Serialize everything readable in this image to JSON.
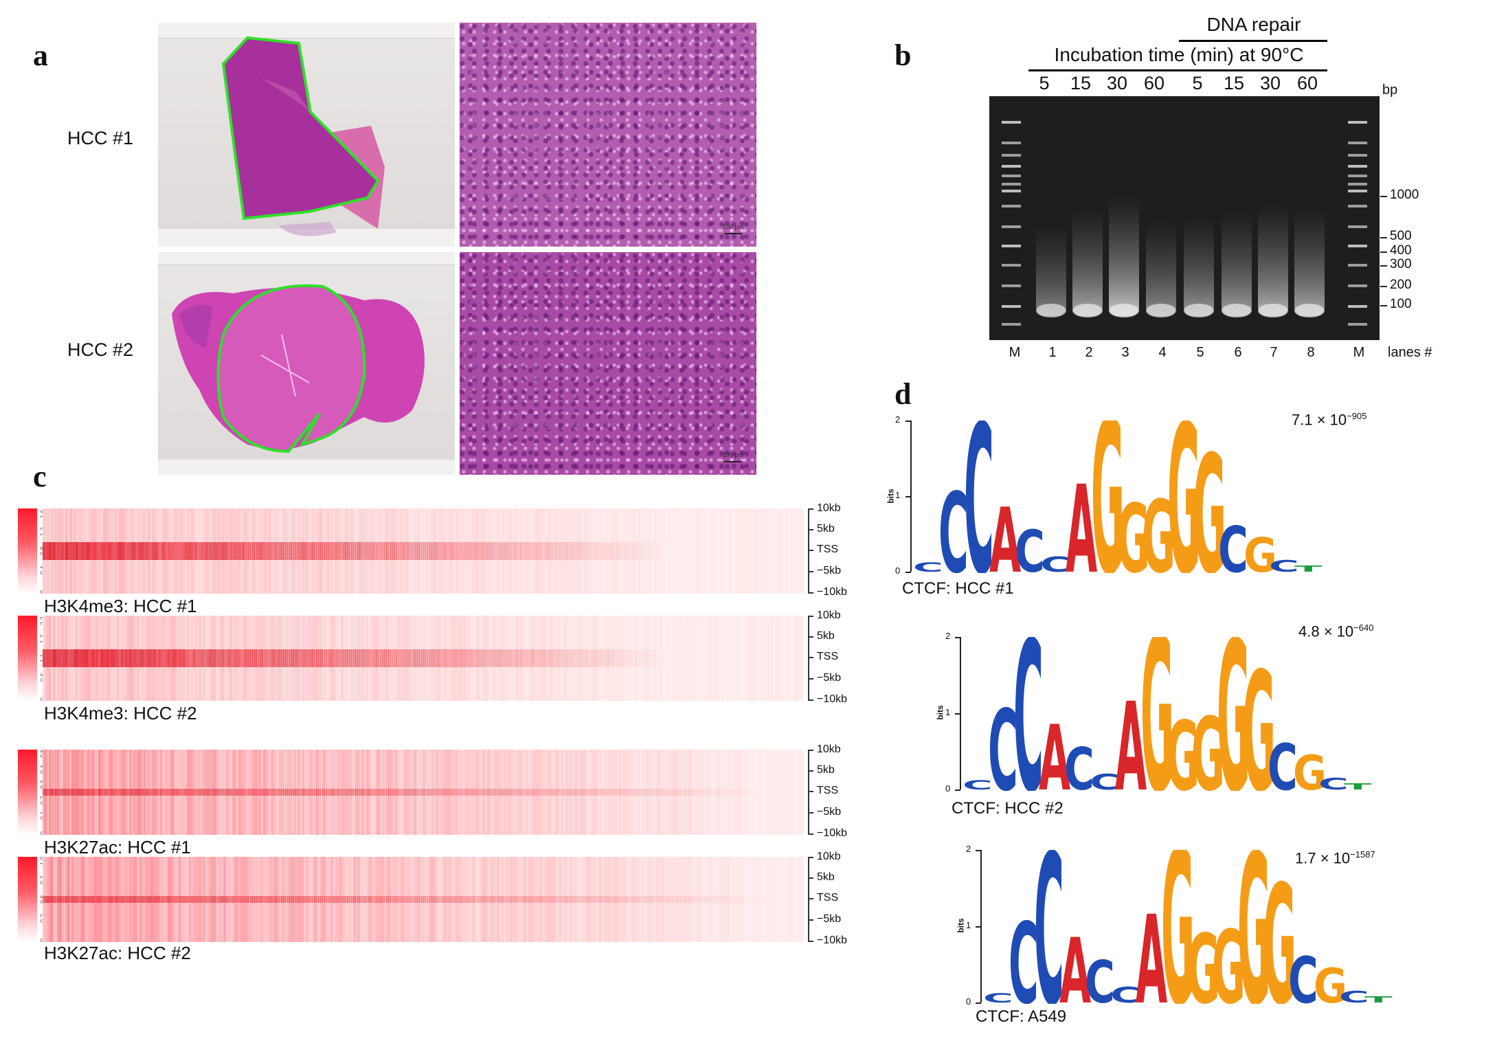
{
  "panels": {
    "a": "a",
    "b": "b",
    "c": "c",
    "d": "d"
  },
  "panel_a": {
    "labels": [
      "HCC #1",
      "HCC #2"
    ],
    "scale_bars": [
      "100 μm",
      "100 μm"
    ]
  },
  "panel_b": {
    "group_label": "DNA repair",
    "header": "Incubation time (min) at 90°C",
    "times": [
      "5",
      "15",
      "30",
      "60",
      "5",
      "15",
      "30",
      "60"
    ],
    "unit": "bp",
    "marker_sizes": [
      "1000",
      "500",
      "400",
      "300",
      "200",
      "100"
    ],
    "lanes": [
      "M",
      "1",
      "2",
      "3",
      "4",
      "5",
      "6",
      "7",
      "8",
      "M"
    ],
    "lanes_caption": "lanes #",
    "smear_intensity": [
      0.35,
      0.55,
      0.7,
      0.4,
      0.45,
      0.5,
      0.6,
      0.55
    ]
  },
  "panel_c": {
    "axis_ticks": [
      "10kb",
      "5kb",
      "TSS",
      "−5kb",
      "−10kb"
    ],
    "heatmaps": [
      {
        "label": "H3K4me3: HCC #1",
        "scale": [
          "0",
          "0.4",
          "0.8",
          "1.2",
          "1.6"
        ]
      },
      {
        "label": "H3K4me3: HCC #2",
        "scale": [
          "0",
          "0.6",
          "1.1",
          "1.7",
          "2.2"
        ]
      },
      {
        "label": "H3K27ac: HCC #1",
        "scale": [
          "0",
          "0.1",
          "0.2",
          "0.3",
          "0.4",
          "0.5"
        ]
      },
      {
        "label": "H3K27ac: HCC #2",
        "scale": [
          "0",
          "0.2",
          "0.5",
          "0.7",
          "1.0"
        ]
      }
    ]
  },
  "panel_d": {
    "y_label": "bits",
    "y_ticks": [
      "0",
      "1",
      "2"
    ],
    "motifs": [
      {
        "title": "CTCF: HCC #1",
        "pval_base": "7.1 × 10",
        "pval_exp": "−905"
      },
      {
        "title": "CTCF: HCC #2",
        "pval_base": "4.8 × 10",
        "pval_exp": "−640"
      },
      {
        "title": "CTCF: A549",
        "pval_base": "1.7 × 10",
        "pval_exp": "−1587"
      }
    ],
    "logo_letters": [
      {
        "l": "C",
        "h": 0.12,
        "c": "#1f4bb5"
      },
      {
        "l": "C",
        "h": 1.05,
        "c": "#1f4bb5"
      },
      {
        "l": "C",
        "h": 1.95,
        "c": "#1f4bb5"
      },
      {
        "l": "A",
        "h": 0.85,
        "c": "#d9262a"
      },
      {
        "l": "C",
        "h": 0.55,
        "c": "#1f4bb5"
      },
      {
        "l": "C",
        "h": 0.2,
        "c": "#1f4bb5"
      },
      {
        "l": "A",
        "h": 1.15,
        "c": "#d9262a"
      },
      {
        "l": "G",
        "h": 2.0,
        "c": "#f59c17"
      },
      {
        "l": "G",
        "h": 0.9,
        "c": "#f59c17"
      },
      {
        "l": "G",
        "h": 0.95,
        "c": "#f59c17"
      },
      {
        "l": "G",
        "h": 1.95,
        "c": "#f59c17"
      },
      {
        "l": "G",
        "h": 1.55,
        "c": "#f59c17"
      },
      {
        "l": "C",
        "h": 0.6,
        "c": "#1f4bb5"
      },
      {
        "l": "G",
        "h": 0.45,
        "c": "#f59c17"
      },
      {
        "l": "C",
        "h": 0.15,
        "c": "#1f4bb5"
      },
      {
        "l": "T",
        "h": 0.08,
        "c": "#1a9c3c"
      }
    ]
  }
}
